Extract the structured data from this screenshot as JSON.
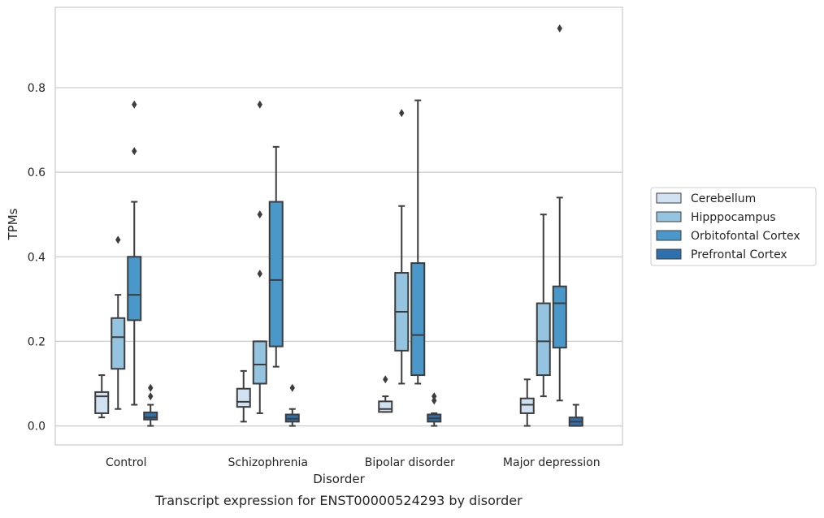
{
  "chart_data": {
    "type": "box",
    "caption": "Transcript expression for ENST00000524293 by disorder",
    "xlabel": "Disorder",
    "ylabel": "TPMs",
    "categories": [
      "Control",
      "Schizophrenia",
      "Bipolar disorder",
      "Major depression"
    ],
    "ylim": [
      -0.045,
      0.99
    ],
    "yticks": [
      0.0,
      0.2,
      0.4,
      0.6,
      0.8
    ],
    "ytick_labels": [
      "0.0",
      "0.2",
      "0.4",
      "0.6",
      "0.8"
    ],
    "grid": "horizontal",
    "legend_position": "right",
    "series": [
      {
        "name": "Cerebellum",
        "color": "#d0e1f2",
        "boxes": [
          {
            "q1": 0.03,
            "median": 0.07,
            "q3": 0.08,
            "whisker_low": 0.02,
            "whisker_high": 0.12,
            "outliers": []
          },
          {
            "q1": 0.045,
            "median": 0.057,
            "q3": 0.088,
            "whisker_low": 0.01,
            "whisker_high": 0.13,
            "outliers": []
          },
          {
            "q1": 0.033,
            "median": 0.04,
            "q3": 0.058,
            "whisker_low": 0.033,
            "whisker_high": 0.07,
            "outliers": [
              0.11
            ]
          },
          {
            "q1": 0.03,
            "median": 0.05,
            "q3": 0.065,
            "whisker_low": 0.0,
            "whisker_high": 0.11,
            "outliers": []
          }
        ]
      },
      {
        "name": "Hipppocampus",
        "color": "#94c4df",
        "boxes": [
          {
            "q1": 0.135,
            "median": 0.21,
            "q3": 0.255,
            "whisker_low": 0.04,
            "whisker_high": 0.31,
            "outliers": [
              0.44
            ]
          },
          {
            "q1": 0.1,
            "median": 0.145,
            "q3": 0.2,
            "whisker_low": 0.03,
            "whisker_high": 0.2,
            "outliers": [
              0.36,
              0.5,
              0.76
            ]
          },
          {
            "q1": 0.178,
            "median": 0.27,
            "q3": 0.362,
            "whisker_low": 0.1,
            "whisker_high": 0.52,
            "outliers": [
              0.74
            ]
          },
          {
            "q1": 0.12,
            "median": 0.2,
            "q3": 0.29,
            "whisker_low": 0.07,
            "whisker_high": 0.5,
            "outliers": []
          }
        ]
      },
      {
        "name": "Orbitofontal Cortex",
        "color": "#4a98c9",
        "boxes": [
          {
            "q1": 0.25,
            "median": 0.31,
            "q3": 0.4,
            "whisker_low": 0.05,
            "whisker_high": 0.53,
            "outliers": [
              0.65,
              0.76
            ]
          },
          {
            "q1": 0.188,
            "median": 0.345,
            "q3": 0.53,
            "whisker_low": 0.14,
            "whisker_high": 0.66,
            "outliers": []
          },
          {
            "q1": 0.12,
            "median": 0.215,
            "q3": 0.385,
            "whisker_low": 0.1,
            "whisker_high": 0.77,
            "outliers": []
          },
          {
            "q1": 0.185,
            "median": 0.29,
            "q3": 0.33,
            "whisker_low": 0.06,
            "whisker_high": 0.54,
            "outliers": [
              0.94
            ]
          }
        ]
      },
      {
        "name": "Prefrontal Cortex",
        "color": "#2e6fad",
        "boxes": [
          {
            "q1": 0.015,
            "median": 0.02,
            "q3": 0.032,
            "whisker_low": 0.0,
            "whisker_high": 0.05,
            "outliers": [
              0.07,
              0.09
            ]
          },
          {
            "q1": 0.01,
            "median": 0.017,
            "q3": 0.027,
            "whisker_low": 0.0,
            "whisker_high": 0.04,
            "outliers": [
              0.09
            ]
          },
          {
            "q1": 0.01,
            "median": 0.018,
            "q3": 0.027,
            "whisker_low": 0.0,
            "whisker_high": 0.03,
            "outliers": [
              0.06,
              0.07
            ]
          },
          {
            "q1": 0.0,
            "median": 0.01,
            "q3": 0.02,
            "whisker_low": 0.0,
            "whisker_high": 0.05,
            "outliers": []
          }
        ]
      }
    ]
  }
}
